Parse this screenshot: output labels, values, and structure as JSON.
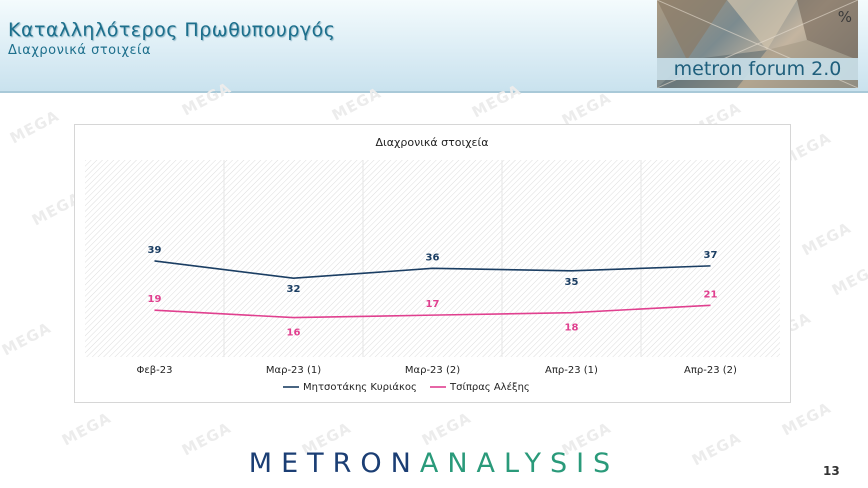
{
  "header": {
    "title": "Καταλληλότερος Πρωθυπουργός",
    "subtitle": "Διαχρονικά στοιχεία",
    "forum_badge": "metron forum 2.0",
    "percent_sign": "%"
  },
  "watermark_text": "MEGA",
  "footer": {
    "logo_part1": "METRON",
    "logo_part2": "ANALYSIS",
    "page_number": "13"
  },
  "colors": {
    "series1": "#1b3e63",
    "series2": "#e0408f",
    "title": "#1d6f8c"
  },
  "chart_data": {
    "type": "line",
    "title": "Διαχρονικά στοιχεία",
    "categories": [
      "Φεβ-23",
      "Μαρ-23 (1)",
      "Μαρ-23 (2)",
      "Απρ-23 (1)",
      "Απρ-23 (2)"
    ],
    "series": [
      {
        "name": "Μητσοτάκης Κυριάκος",
        "values": [
          39,
          32,
          36,
          35,
          37
        ]
      },
      {
        "name": "Τσίπρας Αλέξης",
        "values": [
          19,
          16,
          17,
          18,
          21
        ]
      }
    ],
    "ylim": [
      0,
      80
    ],
    "grid": "hatched",
    "legend": "bottom",
    "data_labels": true
  }
}
